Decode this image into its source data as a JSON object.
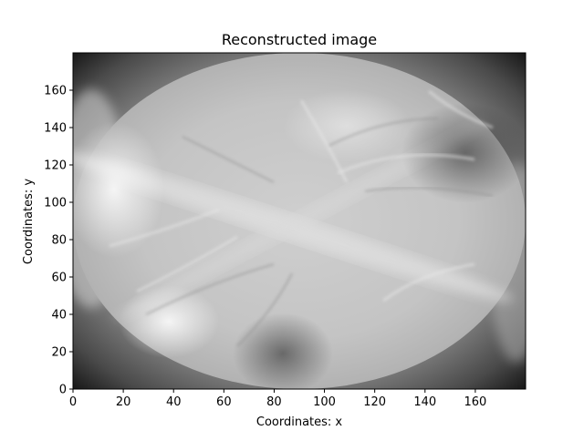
{
  "chart_data": {
    "type": "heatmap",
    "title": "Reconstructed image",
    "xlabel": "Coordinates: x",
    "ylabel": "Coordinates: y",
    "xlim": [
      0,
      180
    ],
    "ylim": [
      0,
      180
    ],
    "xticks": [
      0,
      20,
      40,
      60,
      80,
      100,
      120,
      140,
      160
    ],
    "yticks": [
      0,
      20,
      40,
      60,
      80,
      100,
      120,
      140,
      160
    ],
    "grid": false,
    "colormap": "gray",
    "reconstruction_disk": {
      "center": [
        90,
        90
      ],
      "radius": 90
    }
  }
}
